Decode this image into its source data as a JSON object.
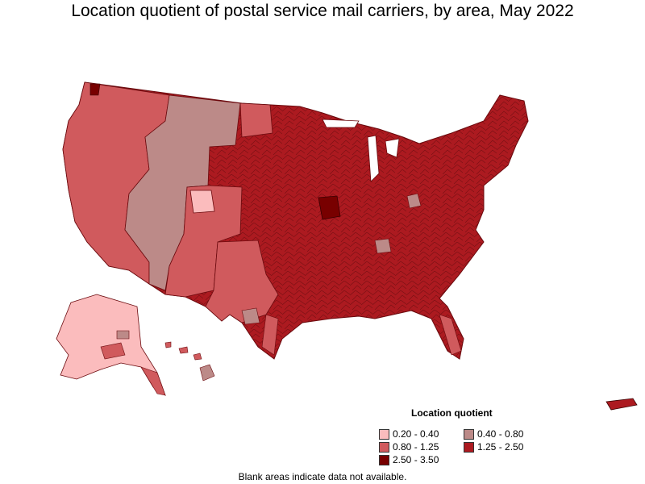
{
  "title": "Location quotient of postal service mail carriers, by area, May 2022",
  "legend": {
    "title": "Location quotient",
    "items": [
      {
        "label": "0.20 - 0.40",
        "color": "#fbbcbd"
      },
      {
        "label": "0.40 - 0.80",
        "color": "#bc8a88"
      },
      {
        "label": "0.80 - 1.25",
        "color": "#d05a5d"
      },
      {
        "label": "1.25 - 2.50",
        "color": "#ac1a20"
      },
      {
        "label": "2.50 - 3.50",
        "color": "#780000"
      }
    ]
  },
  "footnote": "Blank areas indicate data not available."
}
